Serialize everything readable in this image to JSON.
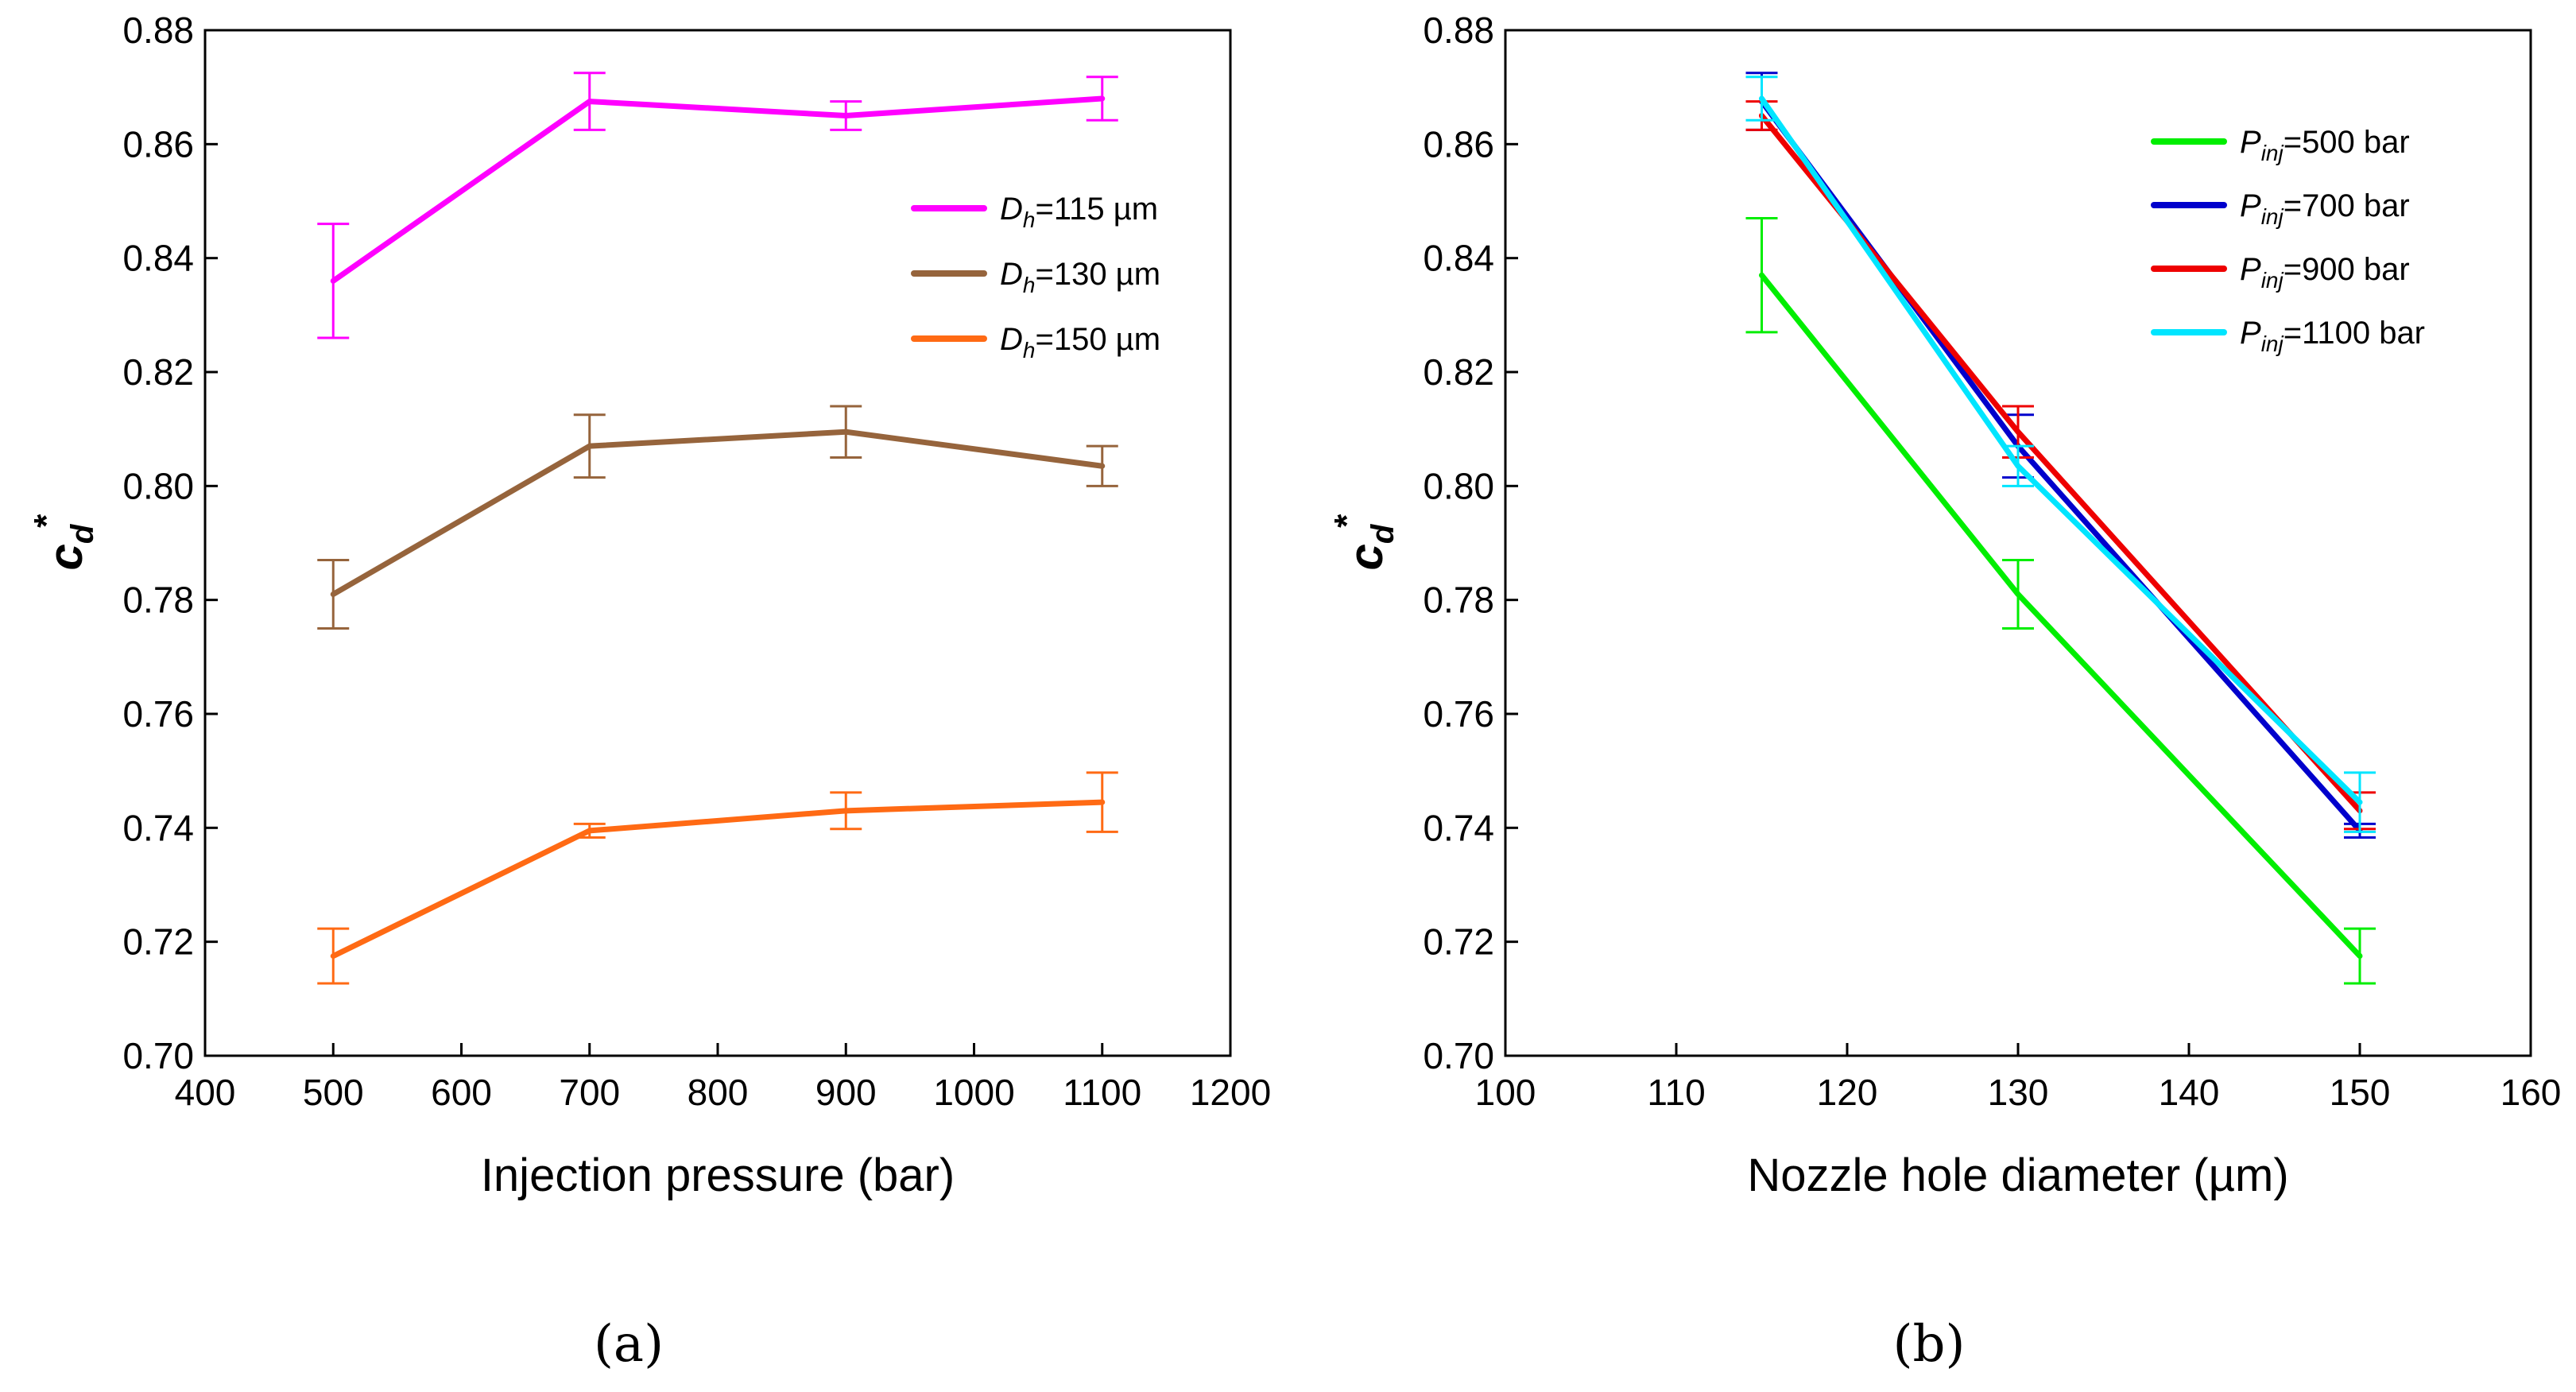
{
  "chart_data": [
    {
      "type": "line",
      "panel_label": "(a)",
      "xlabel": "Injection pressure (bar)",
      "ylabel": "c",
      "ylabel_sub": "d",
      "ylabel_sup": "*",
      "xlim": [
        400,
        1200
      ],
      "ylim": [
        0.7,
        0.88
      ],
      "xticks": [
        400,
        500,
        600,
        700,
        800,
        900,
        1000,
        1100,
        1200
      ],
      "xtick_labels": [
        "400",
        "500",
        "600",
        "700",
        "800",
        "900",
        "1000",
        "1100",
        "1200"
      ],
      "yticks": [
        0.7,
        0.72,
        0.74,
        0.76,
        0.78,
        0.8,
        0.82,
        0.84,
        0.86,
        0.88
      ],
      "ytick_labels": [
        "0.70",
        "0.72",
        "0.74",
        "0.76",
        "0.78",
        "0.80",
        "0.82",
        "0.84",
        "0.86",
        "0.88"
      ],
      "grid": false,
      "legend_position": "top-right",
      "series": [
        {
          "name": "D",
          "name_sub": "h",
          "name_suffix": "=115 µm",
          "color": "#ff00ff",
          "x": [
            500,
            700,
            900,
            1100
          ],
          "y": [
            0.836,
            0.8675,
            0.865,
            0.868
          ],
          "err": [
            0.01,
            0.005,
            0.0025,
            0.0038
          ]
        },
        {
          "name": "D",
          "name_sub": "h",
          "name_suffix": "=130 µm",
          "color": "#96643c",
          "x": [
            500,
            700,
            900,
            1100
          ],
          "y": [
            0.781,
            0.807,
            0.8095,
            0.8035
          ],
          "err": [
            0.006,
            0.0055,
            0.0045,
            0.0035
          ]
        },
        {
          "name": "D",
          "name_sub": "h",
          "name_suffix": "=150 µm",
          "color": "#ff6a14",
          "x": [
            500,
            700,
            900,
            1100
          ],
          "y": [
            0.7175,
            0.7395,
            0.743,
            0.7445
          ],
          "err": [
            0.0048,
            0.0012,
            0.0032,
            0.0052
          ]
        }
      ]
    },
    {
      "type": "line",
      "panel_label": "(b)",
      "xlabel": "Nozzle hole diameter (µm)",
      "ylabel": "c",
      "ylabel_sub": "d",
      "ylabel_sup": "*",
      "xlim": [
        100,
        160
      ],
      "ylim": [
        0.7,
        0.88
      ],
      "xticks": [
        100,
        110,
        120,
        130,
        140,
        150,
        160
      ],
      "xtick_labels": [
        "100",
        "110",
        "120",
        "130",
        "140",
        "150",
        "160"
      ],
      "yticks": [
        0.7,
        0.72,
        0.74,
        0.76,
        0.78,
        0.8,
        0.82,
        0.84,
        0.86,
        0.88
      ],
      "ytick_labels": [
        "0.70",
        "0.72",
        "0.74",
        "0.76",
        "0.78",
        "0.80",
        "0.82",
        "0.84",
        "0.86",
        "0.88"
      ],
      "grid": false,
      "legend_position": "top-right",
      "series": [
        {
          "name": "P",
          "name_sub": "inj",
          "name_suffix": "=500 bar",
          "color": "#00ee00",
          "x": [
            115,
            130,
            150
          ],
          "y": [
            0.837,
            0.781,
            0.7175
          ],
          "err": [
            0.01,
            0.006,
            0.0048
          ]
        },
        {
          "name": "P",
          "name_sub": "inj",
          "name_suffix": "=700 bar",
          "color": "#0000cc",
          "x": [
            115,
            130,
            150
          ],
          "y": [
            0.8675,
            0.807,
            0.7395
          ],
          "err": [
            0.005,
            0.0055,
            0.0012
          ]
        },
        {
          "name": "P",
          "name_sub": "inj",
          "name_suffix": "=900 bar",
          "color": "#ee0000",
          "x": [
            115,
            130,
            150
          ],
          "y": [
            0.865,
            0.8095,
            0.743
          ],
          "err": [
            0.0025,
            0.0045,
            0.0032
          ]
        },
        {
          "name": "P",
          "name_sub": "inj",
          "name_suffix": "=1100 bar",
          "color": "#00e5ff",
          "x": [
            115,
            130,
            150
          ],
          "y": [
            0.868,
            0.8035,
            0.7445
          ],
          "err": [
            0.0038,
            0.0035,
            0.0052
          ]
        }
      ]
    }
  ]
}
